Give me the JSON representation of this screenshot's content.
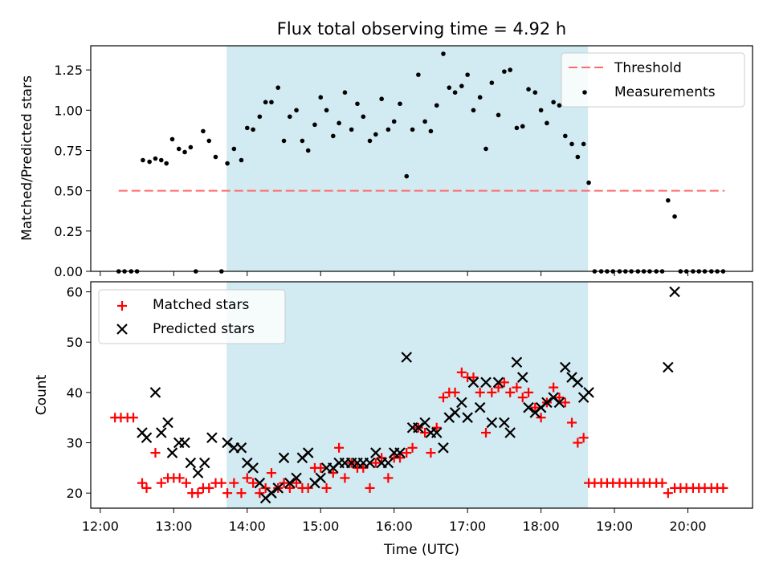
{
  "chart_data": [
    {
      "type": "scatter",
      "title": "Flux total observing time = 4.92 h",
      "xlabel": "",
      "ylabel": "Matched/Predicted stars",
      "x_unit": "UTC hour",
      "xlim": [
        11.87,
        20.88
      ],
      "ylim": [
        0,
        1.4
      ],
      "yticks": [
        0.0,
        0.25,
        0.5,
        0.75,
        1.0,
        1.25
      ],
      "ytick_labels": [
        "0.00",
        "0.25",
        "0.50",
        "0.75",
        "1.00",
        "1.25"
      ],
      "shaded_span": [
        13.72,
        18.64
      ],
      "shade_color": "#add8e6",
      "threshold": {
        "name": "Threshold",
        "value": 0.5,
        "x_range": [
          12.25,
          20.5
        ],
        "color": "#ff6b6b",
        "style": "dashed"
      },
      "legend_position": "upper right",
      "series": [
        {
          "name": "Measurements",
          "marker": "dot",
          "color": "#000000",
          "x": [
            12.25,
            12.33,
            12.42,
            12.5,
            12.58,
            12.67,
            12.75,
            12.83,
            12.9,
            12.98,
            13.07,
            13.15,
            13.23,
            13.3,
            13.4,
            13.48,
            13.57,
            13.65,
            13.73,
            13.82,
            13.92,
            14.0,
            14.08,
            14.17,
            14.25,
            14.33,
            14.42,
            14.5,
            14.58,
            14.67,
            14.75,
            14.83,
            14.92,
            15.0,
            15.08,
            15.17,
            15.25,
            15.33,
            15.42,
            15.5,
            15.58,
            15.67,
            15.75,
            15.83,
            15.92,
            16.0,
            16.08,
            16.17,
            16.25,
            16.33,
            16.42,
            16.5,
            16.58,
            16.67,
            16.75,
            16.83,
            16.92,
            17.0,
            17.08,
            17.17,
            17.25,
            17.33,
            17.42,
            17.5,
            17.58,
            17.67,
            17.75,
            17.83,
            17.92,
            18.0,
            18.08,
            18.17,
            18.25,
            18.33,
            18.42,
            18.5,
            18.58,
            18.65,
            18.73,
            18.82,
            18.9,
            18.98,
            19.07,
            19.15,
            19.23,
            19.32,
            19.4,
            19.48,
            19.57,
            19.65,
            19.73,
            19.82,
            19.9,
            19.98,
            20.07,
            20.15,
            20.23,
            20.32,
            20.4,
            20.48
          ],
          "y": [
            0,
            0,
            0,
            0,
            0.69,
            0.68,
            0.7,
            0.69,
            0.67,
            0.82,
            0.76,
            0.74,
            0.77,
            0,
            0.87,
            0.81,
            0.71,
            0,
            0.67,
            0.76,
            0.69,
            0.89,
            0.88,
            0.96,
            1.05,
            1.05,
            1.14,
            0.81,
            0.96,
            1.0,
            0.81,
            0.75,
            0.91,
            1.08,
            1.0,
            0.84,
            0.92,
            1.11,
            0.88,
            1.04,
            0.96,
            0.81,
            0.85,
            1.07,
            0.88,
            0.93,
            1.04,
            0.59,
            0.88,
            1.22,
            0.93,
            0.87,
            1.03,
            1.35,
            1.14,
            1.11,
            1.15,
            1.22,
            1.0,
            1.08,
            0.76,
            1.17,
            0.97,
            1.24,
            1.25,
            0.89,
            0.9,
            1.13,
            1.11,
            1.0,
            0.92,
            1.05,
            1.03,
            0.84,
            0.79,
            0.71,
            0.79,
            0.55,
            0,
            0,
            0,
            0,
            0,
            0,
            0,
            0,
            0,
            0,
            0,
            0,
            0.44,
            0.34,
            0,
            0,
            0,
            0,
            0,
            0,
            0,
            0
          ]
        }
      ]
    },
    {
      "type": "scatter",
      "title": "",
      "xlabel": "Time (UTC)",
      "ylabel": "Count",
      "x_unit": "UTC hour",
      "xlim": [
        11.87,
        20.88
      ],
      "ylim": [
        17,
        62
      ],
      "yticks": [
        20,
        30,
        40,
        50,
        60
      ],
      "xticks": [
        12,
        13,
        14,
        15,
        16,
        17,
        18,
        19,
        20
      ],
      "xtick_labels": [
        "12:00",
        "13:00",
        "14:00",
        "15:00",
        "16:00",
        "17:00",
        "18:00",
        "19:00",
        "20:00"
      ],
      "shaded_span": [
        13.72,
        18.64
      ],
      "shade_color": "#add8e6",
      "legend_position": "upper left",
      "series": [
        {
          "name": "Matched stars",
          "marker": "plus",
          "color": "#ff0000",
          "x": [
            12.2,
            12.28,
            12.37,
            12.45,
            12.57,
            12.63,
            12.75,
            12.83,
            12.92,
            13.0,
            13.08,
            13.17,
            13.25,
            13.33,
            13.4,
            13.48,
            13.57,
            13.65,
            13.73,
            13.82,
            13.92,
            14.0,
            14.08,
            14.17,
            14.25,
            14.33,
            14.42,
            14.5,
            14.58,
            14.67,
            14.75,
            14.83,
            14.92,
            15.0,
            15.08,
            15.17,
            15.25,
            15.33,
            15.42,
            15.5,
            15.58,
            15.67,
            15.75,
            15.83,
            15.92,
            16.0,
            16.08,
            16.17,
            16.25,
            16.33,
            16.42,
            16.5,
            16.58,
            16.67,
            16.75,
            16.83,
            16.92,
            17.0,
            17.08,
            17.17,
            17.25,
            17.33,
            17.42,
            17.5,
            17.58,
            17.67,
            17.75,
            17.83,
            17.92,
            18.0,
            18.08,
            18.17,
            18.25,
            18.33,
            18.42,
            18.5,
            18.58,
            18.65,
            18.73,
            18.82,
            18.9,
            18.98,
            19.07,
            19.15,
            19.23,
            19.32,
            19.4,
            19.48,
            19.57,
            19.65,
            19.73,
            19.82,
            19.9,
            19.98,
            20.07,
            20.15,
            20.23,
            20.32,
            20.4,
            20.48
          ],
          "y": [
            35,
            35,
            35,
            35,
            22,
            21,
            28,
            22,
            23,
            23,
            23,
            22,
            20,
            20,
            21,
            21,
            22,
            22,
            20,
            22,
            20,
            23,
            22,
            20,
            21,
            24,
            21,
            22,
            21,
            22,
            21,
            21,
            25,
            25,
            21,
            24,
            29,
            23,
            26,
            25,
            25,
            21,
            26,
            27,
            23,
            27,
            27,
            28,
            29,
            33,
            32,
            28,
            33,
            39,
            40,
            40,
            44,
            43,
            43,
            40,
            32,
            40,
            41,
            42,
            40,
            41,
            39,
            40,
            37,
            35,
            38,
            41,
            39,
            38,
            34,
            30,
            31,
            22,
            22,
            22,
            22,
            22,
            22,
            22,
            22,
            22,
            22,
            22,
            22,
            22,
            20,
            21,
            21,
            21,
            21,
            21,
            21,
            21,
            21,
            21
          ]
        },
        {
          "name": "Predicted stars",
          "marker": "cross",
          "color": "#000000",
          "x": [
            12.57,
            12.63,
            12.75,
            12.83,
            12.92,
            12.98,
            13.07,
            13.15,
            13.23,
            13.33,
            13.42,
            13.52,
            13.73,
            13.82,
            13.92,
            14.0,
            14.08,
            14.17,
            14.25,
            14.33,
            14.42,
            14.5,
            14.58,
            14.67,
            14.75,
            14.83,
            14.92,
            15.0,
            15.08,
            15.17,
            15.25,
            15.33,
            15.42,
            15.5,
            15.58,
            15.67,
            15.75,
            15.83,
            15.92,
            16.0,
            16.08,
            16.17,
            16.25,
            16.33,
            16.42,
            16.5,
            16.58,
            16.67,
            16.75,
            16.83,
            16.92,
            17.0,
            17.08,
            17.17,
            17.25,
            17.33,
            17.42,
            17.5,
            17.58,
            17.67,
            17.75,
            17.83,
            17.92,
            18.0,
            18.08,
            18.17,
            18.25,
            18.33,
            18.42,
            18.5,
            18.58,
            18.65,
            19.73,
            19.82
          ],
          "y": [
            32,
            31,
            40,
            32,
            34,
            28,
            30,
            30,
            26,
            24,
            26,
            31,
            30,
            29,
            29,
            26,
            25,
            22,
            19,
            20,
            21,
            27,
            22,
            23,
            27,
            28,
            22,
            23,
            25,
            25,
            26,
            26,
            26,
            26,
            26,
            26,
            28,
            26,
            26,
            28,
            28,
            47,
            33,
            33,
            34,
            32,
            32,
            29,
            35,
            36,
            38,
            35,
            42,
            37,
            42,
            34,
            42,
            34,
            32,
            46,
            43,
            37,
            36,
            37,
            38,
            39,
            38,
            45,
            43,
            42,
            39,
            40,
            45,
            60
          ]
        }
      ]
    }
  ]
}
